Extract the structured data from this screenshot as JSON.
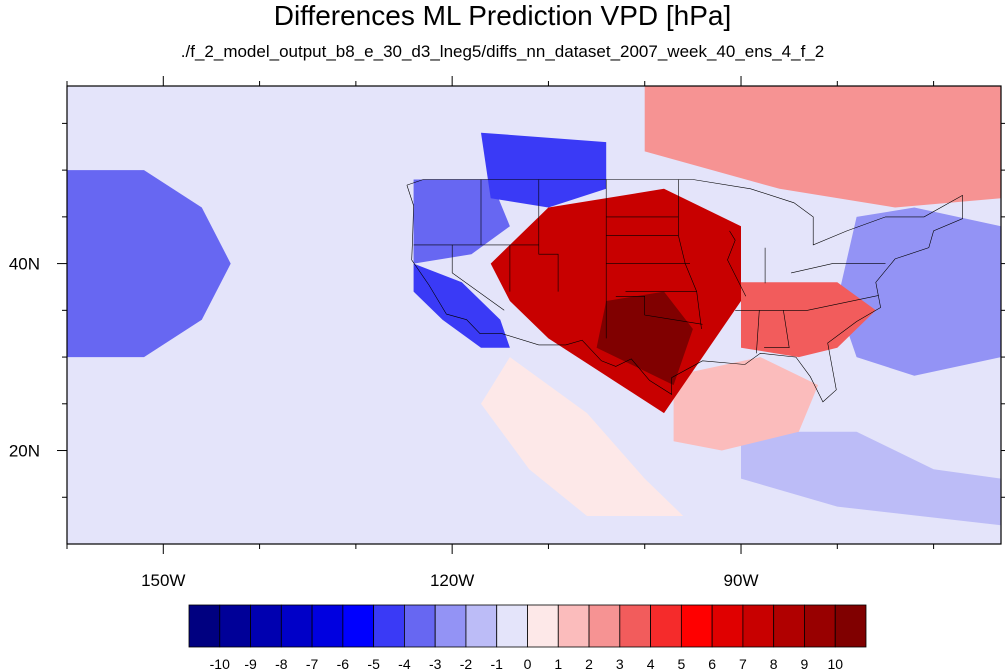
{
  "chart_data": {
    "type": "heatmap",
    "title": "Differences ML Prediction VPD [hPa]",
    "subtitle": "./f_2_model_output_b8_e_30_d3_lneg5/diffs_nn_dataset_2007_week_40_ens_4_f_2",
    "lon_range": [
      -160,
      -63
    ],
    "lat_range": [
      10,
      59
    ],
    "x_ticks": [
      {
        "lon": -150,
        "label": "150W"
      },
      {
        "lon": -120,
        "label": "120W"
      },
      {
        "lon": -90,
        "label": "90W"
      }
    ],
    "y_ticks": [
      {
        "lat": 40,
        "label": "40N"
      },
      {
        "lat": 20,
        "label": "20N"
      }
    ],
    "colorbar": {
      "labels": [
        "-10",
        "-9",
        "-8",
        "-7",
        "-6",
        "-5",
        "-4",
        "-3",
        "-2",
        "-1",
        "0",
        "1",
        "2",
        "3",
        "4",
        "5",
        "6",
        "7",
        "8",
        "9",
        "10"
      ],
      "colors": [
        "#000080",
        "#000098",
        "#0000b0",
        "#0000c8",
        "#0000e0",
        "#0000ff",
        "#3a3af6",
        "#6767f2",
        "#9393f5",
        "#bcbcf7",
        "#e4e4fa",
        "#fde8e8",
        "#fbbcbc",
        "#f69393",
        "#f25c5c",
        "#f52b2b",
        "#ff0000",
        "#e00000",
        "#c80000",
        "#b00000",
        "#980000",
        "#800000"
      ]
    },
    "regions": [
      {
        "name": "Pacific background",
        "value": -1
      },
      {
        "name": "Far west Pacific",
        "value": -4
      },
      {
        "name": "Gulf of Alaska",
        "value": -1
      },
      {
        "name": "Pacific Northwest coast",
        "value": -4
      },
      {
        "name": "Northern Rockies",
        "value": -5
      },
      {
        "name": "California coast",
        "value": -5
      },
      {
        "name": "Central Plains / Texas",
        "value": 7
      },
      {
        "name": "Texas core",
        "value": 10
      },
      {
        "name": "Southeast US",
        "value": 3
      },
      {
        "name": "Canada east",
        "value": 2
      },
      {
        "name": "Western Atlantic",
        "value": -3
      },
      {
        "name": "Gulf of Mexico",
        "value": 1
      },
      {
        "name": "Mexico Pacific coast",
        "value": 0
      },
      {
        "name": "Caribbean",
        "value": -2
      }
    ]
  }
}
